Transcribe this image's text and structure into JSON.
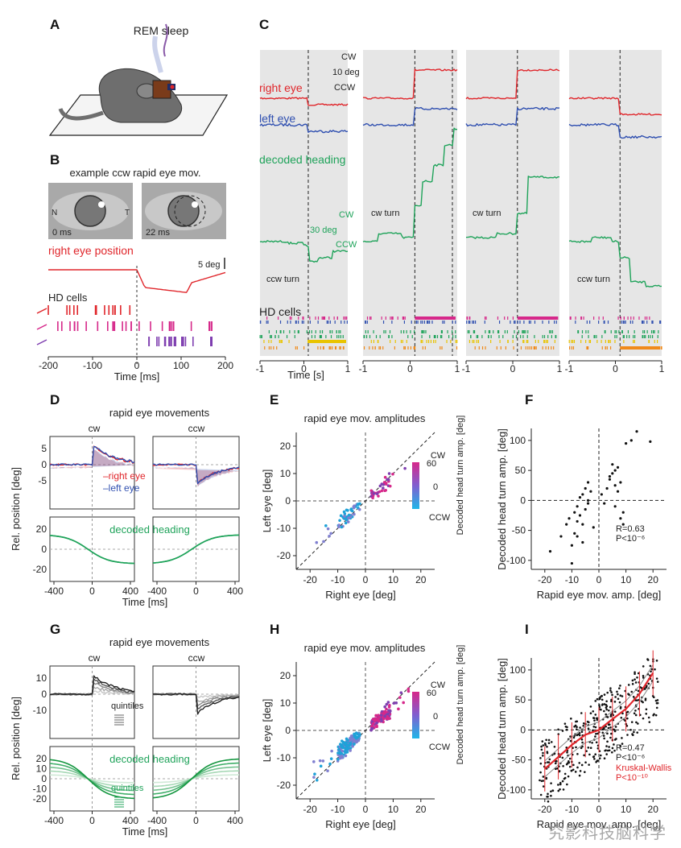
{
  "colors": {
    "red": "#e0262b",
    "blue": "#2f4fb0",
    "green": "#1fa35a",
    "magenta": "#d6288a",
    "purple": "#7f3fb0",
    "gray": "#555555",
    "panel_bg": "#e6e6e6"
  },
  "panel_labels": [
    "A",
    "B",
    "C",
    "D",
    "E",
    "F",
    "G",
    "H",
    "I"
  ],
  "A": {
    "title": "REM sleep"
  },
  "B": {
    "title": "example ccw rapid eye mov.",
    "img1": {
      "time": "0 ms",
      "n": "N",
      "t": "T"
    },
    "img2": {
      "time": "22 ms"
    },
    "eye_label": "right eye position",
    "scale": "5 deg",
    "hd_label": "HD cells",
    "xticks": [
      "-200",
      "-100",
      "0",
      "100",
      "200"
    ],
    "xlabel": "Time [ms]"
  },
  "C": {
    "labels": {
      "right": "right eye",
      "left": "left eye",
      "heading": "decoded heading",
      "hd": "HD cells"
    },
    "scale_eye": {
      "top": "CW",
      "mid": "10 deg",
      "bot": "CCW"
    },
    "scale_head": {
      "top": "CW",
      "mid": "30 deg",
      "bot": "CCW"
    },
    "annotations": [
      "ccw turn",
      "cw turn",
      "cw turn",
      "ccw turn"
    ],
    "xticks": [
      "-1",
      "0",
      "1"
    ],
    "xlabel": "Time [s]"
  },
  "D": {
    "title": "rapid eye movements",
    "cw": "cw",
    "ccw": "ccw",
    "legend_right": "–right eye",
    "legend_left": "–left eye",
    "heading": "decoded heading",
    "ylabel": "Rel. position [deg]",
    "yticks_top": [
      "5",
      "0",
      "-5"
    ],
    "yticks_bot": [
      "20",
      "0",
      "-20"
    ],
    "xticks": [
      "-400",
      "0",
      "400"
    ],
    "xlabel": "Time [ms]"
  },
  "E": {
    "title": "rapid eye mov. amplitudes",
    "xlabel": "Right eye [deg]",
    "ylabel": "Left eye [deg]",
    "xticks": [
      "-20",
      "-10",
      "0",
      "10",
      "20"
    ],
    "yticks": [
      "20",
      "10",
      "0",
      "-10",
      "-20"
    ],
    "cbar": {
      "top": "CW",
      "bot": "CCW",
      "t60": "60",
      "t0": "0",
      "label": "Decoded head turn amp. [deg]"
    }
  },
  "F": {
    "xlabel": "Rapid eye mov. amp. [deg]",
    "ylabel": "Decoded head turn amp. [deg]",
    "xticks": [
      "-20",
      "-10",
      "0",
      "10",
      "20"
    ],
    "yticks": [
      "100",
      "50",
      "0",
      "-50",
      "-100"
    ],
    "stat_r": "R=0.63",
    "stat_p": "P<10⁻⁶"
  },
  "G": {
    "title": "rapid eye movements",
    "cw": "cw",
    "ccw": "ccw",
    "quintiles": "quintiles",
    "heading": "decoded heading",
    "ylabel": "Rel. position [deg]",
    "yticks_top": [
      "10",
      "0",
      "-10"
    ],
    "yticks_bot": [
      "20",
      "10",
      "0",
      "-10",
      "-20"
    ],
    "xticks": [
      "-400",
      "0",
      "400"
    ],
    "xlabel": "Time [ms]"
  },
  "H": {
    "title": "rapid eye mov. amplitudes",
    "xlabel": "Right eye [deg]",
    "ylabel": "Left eye [deg]",
    "xticks": [
      "-20",
      "-10",
      "0",
      "10",
      "20"
    ],
    "yticks": [
      "20",
      "10",
      "0",
      "-10",
      "-20"
    ],
    "cbar": {
      "top": "CW",
      "bot": "CCW",
      "t60": "60",
      "t0": "0",
      "label": "Decoded head turn amp. [deg]"
    }
  },
  "I": {
    "xlabel": "Rapid eye mov. amp. [deg]",
    "ylabel": "Decoded head turn amp. [deg]",
    "xticks": [
      "-20",
      "-10",
      "0",
      "10",
      "20"
    ],
    "yticks": [
      "100",
      "50",
      "0",
      "-50",
      "-100"
    ],
    "stat_r": "R=0.47",
    "stat_p": "P<10⁻⁶",
    "kw": "Kruskal-Wallis",
    "kw_p": "P<10⁻¹⁰"
  },
  "watermark": "究影科技脑科学",
  "chart_data": [
    {
      "panel": "F",
      "type": "scatter",
      "xlabel": "Rapid eye mov. amp. [deg]",
      "ylabel": "Decoded head turn amp. [deg]",
      "xlim": [
        -25,
        25
      ],
      "ylim": [
        -110,
        120
      ],
      "x": [
        -18,
        -14,
        -12,
        -11,
        -10,
        -9,
        -9,
        -8,
        -8,
        -7,
        -7,
        -6,
        -6,
        -5,
        -5,
        -4,
        -4,
        -3,
        -2,
        1,
        2,
        3,
        4,
        5,
        5,
        6,
        6,
        7,
        7,
        8,
        9,
        9,
        10,
        12,
        14,
        19,
        -10,
        -8,
        -6,
        -4,
        4,
        6,
        8
      ],
      "y": [
        -85,
        -60,
        -40,
        -30,
        -75,
        -20,
        -55,
        -10,
        -35,
        5,
        -25,
        10,
        -40,
        20,
        -15,
        30,
        -5,
        15,
        -45,
        10,
        -5,
        20,
        35,
        45,
        60,
        25,
        50,
        15,
        55,
        30,
        -20,
        -40,
        95,
        100,
        115,
        98,
        -105,
        -60,
        -70,
        0,
        40,
        -10,
        -30
      ]
    },
    {
      "panel": "I",
      "type": "scatter",
      "xlabel": "Rapid eye mov. amp. [deg]",
      "ylabel": "Decoded head turn amp. [deg]",
      "xlim": [
        -25,
        25
      ],
      "ylim": [
        -110,
        120
      ],
      "series": [
        {
          "x": [
            -20,
            -15,
            -10,
            -5,
            0,
            5,
            10,
            15,
            20
          ],
          "y": [
            -65,
            -45,
            -25,
            -8,
            0,
            18,
            35,
            60,
            95
          ]
        }
      ]
    }
  ]
}
